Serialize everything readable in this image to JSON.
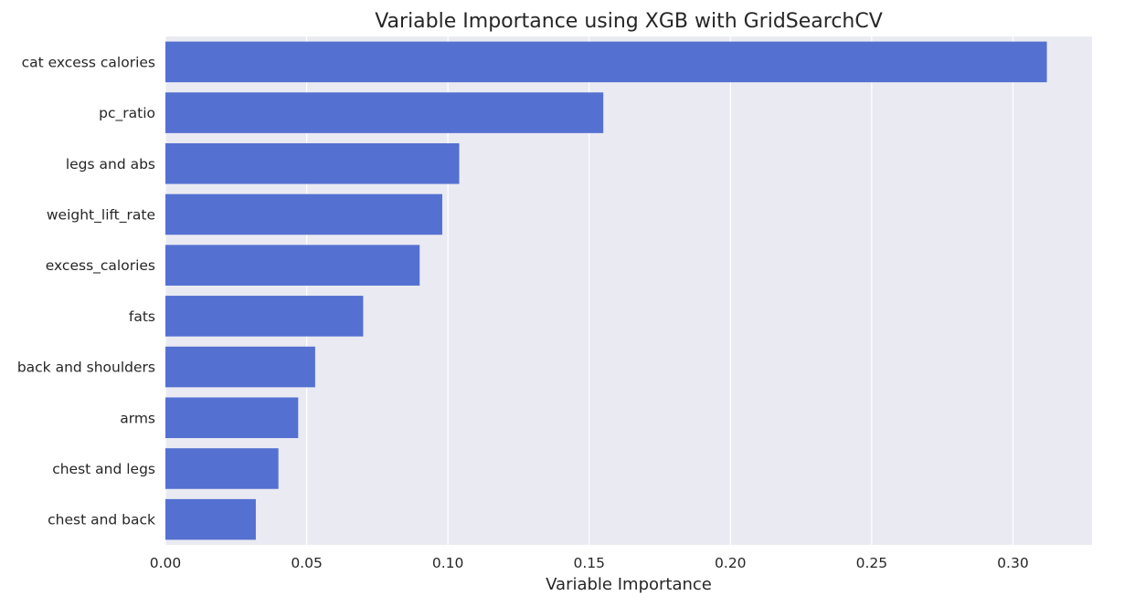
{
  "chart_data": {
    "type": "bar",
    "orientation": "horizontal",
    "title": "Variable Importance using XGB with GridSearchCV",
    "xlabel": "Variable Importance",
    "ylabel": "",
    "categories": [
      "cat excess calories",
      "pc_ratio",
      "legs and abs",
      "weight_lift_rate",
      "excess_calories",
      "fats",
      "back and shoulders",
      "arms",
      "chest and legs",
      "chest and back"
    ],
    "values": [
      0.312,
      0.155,
      0.104,
      0.098,
      0.09,
      0.07,
      0.053,
      0.047,
      0.04,
      0.032
    ],
    "xlim": [
      0,
      0.328
    ],
    "xticks": [
      0.0,
      0.05,
      0.1,
      0.15,
      0.2,
      0.25,
      0.3
    ],
    "xtick_labels": [
      "0.00",
      "0.05",
      "0.10",
      "0.15",
      "0.20",
      "0.25",
      "0.30"
    ],
    "grid": true,
    "legend": "none",
    "colors": {
      "bar": "#5470D1",
      "plot_background": "#EAEAF2",
      "grid": "#FFFFFF",
      "text": "#262626"
    }
  }
}
